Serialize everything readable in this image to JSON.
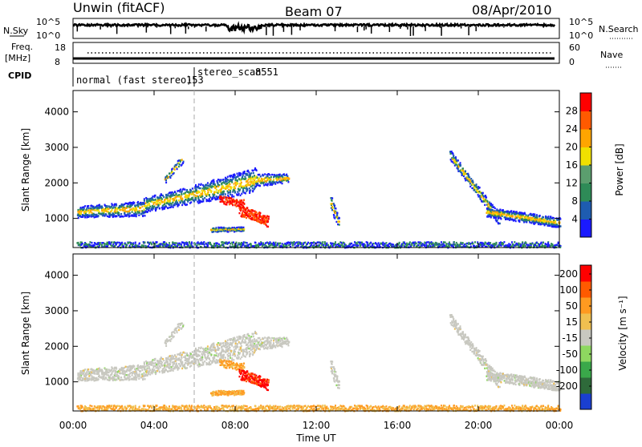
{
  "header": {
    "station": "Unwin (fitACF)",
    "beam": "Beam 07",
    "date": "08/Apr/2010"
  },
  "strips": {
    "nsky_label": "N.Sky",
    "nsky_ticks": [
      "10^5",
      "10^0"
    ],
    "nsearch_label": "N.Search",
    "nsearch_ticks": [
      "10^5",
      "10^0"
    ],
    "freq_label": "Freq.",
    "freq_unit": "[MHz]",
    "freq_ticks": [
      "18",
      "8"
    ],
    "nave_label": "Nave",
    "nave_ticks": [
      "60",
      "0"
    ],
    "cpid_label": "CPID",
    "cpid_modes": [
      {
        "name": "normal (fast stereo)",
        "id": "153"
      },
      {
        "name": "stereo_scan",
        "id": "8551"
      }
    ]
  },
  "chart_data": [
    {
      "type": "heatmap",
      "name": "Power",
      "ylabel": "Slant Range [km]",
      "yticks": [
        "1000",
        "2000",
        "3000",
        "4000"
      ],
      "ylim": [
        180,
        4600
      ],
      "xlim": [
        0,
        24
      ],
      "colorbar_label": "Power [dB]",
      "colorbar_ticks": [
        "4",
        "8",
        "12",
        "16",
        "20",
        "24",
        "28"
      ],
      "colors": [
        "#1a1aff",
        "#1e5cb0",
        "#2e8b57",
        "#5b9e6e",
        "#f0e000",
        "#ffa500",
        "#ff5a00",
        "#ff0000"
      ]
    },
    {
      "type": "heatmap",
      "name": "Velocity",
      "ylabel": "Slant Range [km]",
      "yticks": [
        "1000",
        "2000",
        "3000",
        "4000"
      ],
      "ylim": [
        180,
        4600
      ],
      "xlim": [
        0,
        24
      ],
      "colorbar_label": "Velocity [m s⁻¹]",
      "colorbar_ticks": [
        "200",
        "100",
        "50",
        "15",
        "-15",
        "-50",
        "-100",
        "-200"
      ],
      "colors": [
        "#1a3fd0",
        "#2e6a3a",
        "#3aa84a",
        "#8ed860",
        "#c8c8c0",
        "#f0c050",
        "#ff9a20",
        "#ff5a00",
        "#ff0000"
      ]
    }
  ],
  "xaxis": {
    "label": "Time UT",
    "ticks": [
      "00:00",
      "04:00",
      "08:00",
      "12:00",
      "16:00",
      "20:00",
      "00:00"
    ]
  }
}
